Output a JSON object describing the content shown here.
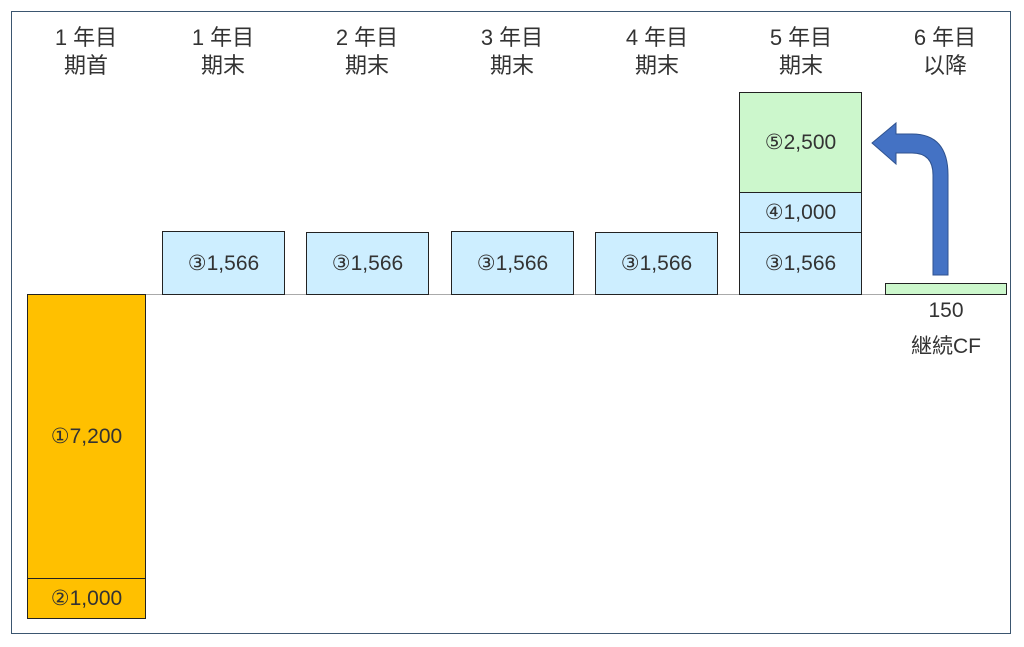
{
  "headers": [
    [
      "1 年目",
      "期首"
    ],
    [
      "1 年目",
      "期末"
    ],
    [
      "2 年目",
      "期末"
    ],
    [
      "3 年目",
      "期末"
    ],
    [
      "4 年目",
      "期末"
    ],
    [
      "5 年目",
      "期末"
    ],
    [
      "6 年目",
      "以降"
    ]
  ],
  "boxes": {
    "initial_investment": "①7,200",
    "initial_other": "②1,000",
    "annual_cf": "③1,566",
    "year5_extra": "④1,000",
    "terminal_value": "⑤2,500"
  },
  "continuing": {
    "value": "150",
    "label": "継続CF"
  },
  "colors": {
    "orange": "#ffc000",
    "blue": "#cdeeff",
    "green": "#ccf7cc",
    "arrow": "#4472c4"
  }
}
